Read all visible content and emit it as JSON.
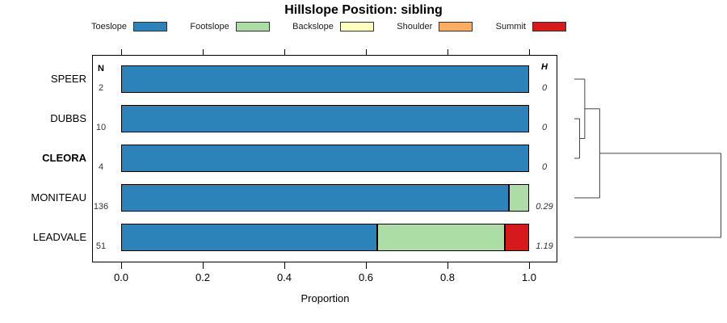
{
  "title": "Hillslope Position: sibling",
  "legend": {
    "items": [
      {
        "label": "Toeslope",
        "color": "#2B83BA"
      },
      {
        "label": "Footslope",
        "color": "#ABDDA4"
      },
      {
        "label": "Backslope",
        "color": "#FFFFBF"
      },
      {
        "label": "Shoulder",
        "color": "#FDAE61"
      },
      {
        "label": "Summit",
        "color": "#D7191C"
      }
    ]
  },
  "columns": {
    "n_header": "N",
    "h_header": "H"
  },
  "rows": [
    {
      "series": "SPEER",
      "bold": false,
      "n": "2",
      "h": "0",
      "segments": [
        {
          "name": "Toeslope",
          "value": 1.0
        }
      ]
    },
    {
      "series": "DUBBS",
      "bold": false,
      "n": "10",
      "h": "0",
      "segments": [
        {
          "name": "Toeslope",
          "value": 1.0
        }
      ]
    },
    {
      "series": "CLEORA",
      "bold": true,
      "n": "4",
      "h": "0",
      "segments": [
        {
          "name": "Toeslope",
          "value": 1.0
        }
      ]
    },
    {
      "series": "MONITEAU",
      "bold": false,
      "n": "136",
      "h": "0.29",
      "segments": [
        {
          "name": "Toeslope",
          "value": 0.95
        },
        {
          "name": "Footslope",
          "value": 0.05
        }
      ]
    },
    {
      "series": "LEADVALE",
      "bold": false,
      "n": "51",
      "h": "1.19",
      "segments": [
        {
          "name": "Toeslope",
          "value": 0.627
        },
        {
          "name": "Footslope",
          "value": 0.314
        },
        {
          "name": "Summit",
          "value": 0.059
        }
      ]
    }
  ],
  "x_axis": {
    "label": "Proportion",
    "tick_values": [
      0,
      0.2,
      0.4,
      0.6,
      0.8,
      1.0
    ],
    "tick_labels": [
      "0.0",
      "0.2",
      "0.4",
      "0.6",
      "0.8",
      "1.0"
    ]
  },
  "dendrogram": {
    "merges": [
      {
        "a": "leaf:1",
        "b": "leaf:2",
        "height": 0.036
      },
      {
        "a": "leaf:0",
        "b": "merge:0",
        "height": 0.071
      },
      {
        "a": "merge:1",
        "b": "leaf:3",
        "height": 0.173
      },
      {
        "a": "merge:2",
        "b": "leaf:4",
        "height": 1.0
      }
    ]
  },
  "chart_data": {
    "type": "bar",
    "orientation": "horizontal-stacked",
    "title": "Hillslope Position: sibling",
    "categories": [
      "SPEER",
      "DUBBS",
      "CLEORA",
      "MONITEAU",
      "LEADVALE"
    ],
    "series": [
      {
        "name": "Toeslope",
        "color": "#2B83BA",
        "values": [
          1,
          1,
          1,
          0.95,
          0.627
        ]
      },
      {
        "name": "Footslope",
        "color": "#ABDDA4",
        "values": [
          0,
          0,
          0,
          0.05,
          0.314
        ]
      },
      {
        "name": "Backslope",
        "color": "#FFFFBF",
        "values": [
          0,
          0,
          0,
          0,
          0
        ]
      },
      {
        "name": "Shoulder",
        "color": "#FDAE61",
        "values": [
          0,
          0,
          0,
          0,
          0
        ]
      },
      {
        "name": "Summit",
        "color": "#D7191C",
        "values": [
          0,
          0,
          0,
          0,
          0.059
        ]
      }
    ],
    "n_values": [
      2,
      10,
      4,
      136,
      51
    ],
    "h_values": [
      0,
      0,
      0,
      0.29,
      1.19
    ],
    "xlabel": "Proportion",
    "xlim": [
      0,
      1
    ],
    "x_ticks": [
      0,
      0.2,
      0.4,
      0.6,
      0.8,
      1.0
    ],
    "legend_position": "top",
    "grid": false,
    "annotations": "Right-side dendrogram: (DUBBS,CLEORA) merge first, then SPEER joins, then MONITEAU, then LEADVALE at max height"
  }
}
